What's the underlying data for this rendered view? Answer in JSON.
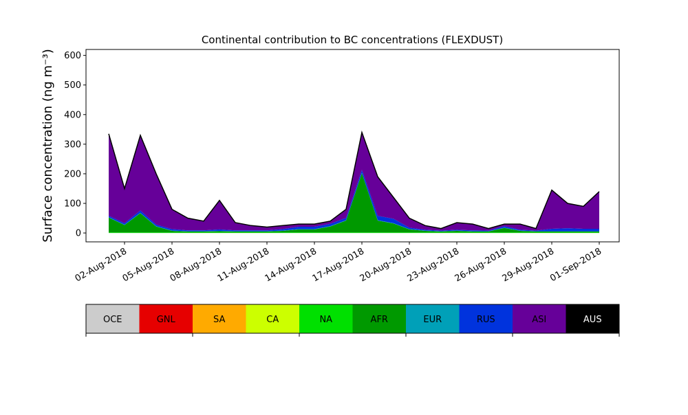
{
  "chart_data": {
    "type": "stacked_area",
    "title": "Continental contribution to BC concentrations (FLEXDUST)",
    "y_label": "Surface concentration (ng m⁻³)",
    "x": [
      "01-Aug-2018",
      "02-Aug-2018",
      "03-Aug-2018",
      "04-Aug-2018",
      "05-Aug-2018",
      "06-Aug-2018",
      "07-Aug-2018",
      "08-Aug-2018",
      "09-Aug-2018",
      "10-Aug-2018",
      "11-Aug-2018",
      "12-Aug-2018",
      "13-Aug-2018",
      "14-Aug-2018",
      "15-Aug-2018",
      "16-Aug-2018",
      "17-Aug-2018",
      "18-Aug-2018",
      "19-Aug-2018",
      "20-Aug-2018",
      "21-Aug-2018",
      "22-Aug-2018",
      "23-Aug-2018",
      "24-Aug-2018",
      "25-Aug-2018",
      "26-Aug-2018",
      "27-Aug-2018",
      "28-Aug-2018",
      "29-Aug-2018",
      "30-Aug-2018",
      "31-Aug-2018",
      "01-Sep-2018"
    ],
    "xticks": [
      "02-Aug-2018",
      "05-Aug-2018",
      "08-Aug-2018",
      "11-Aug-2018",
      "14-Aug-2018",
      "17-Aug-2018",
      "20-Aug-2018",
      "23-Aug-2018",
      "26-Aug-2018",
      "29-Aug-2018",
      "01-Sep-2018"
    ],
    "ylim": [
      -30,
      620
    ],
    "yticks": [
      0,
      100,
      200,
      300,
      400,
      500,
      600
    ],
    "series": [
      {
        "name": "OCE",
        "color": "#cccccc",
        "values": [
          0,
          0,
          0,
          0,
          0,
          0,
          0,
          0,
          0,
          0,
          0,
          0,
          0,
          0,
          0,
          0,
          0,
          0,
          0,
          0,
          0,
          0,
          0,
          0,
          0,
          0,
          0,
          0,
          0,
          0,
          0,
          0
        ]
      },
      {
        "name": "GNL",
        "color": "#e60000",
        "values": [
          0,
          0,
          0,
          0,
          0,
          0,
          0,
          0,
          0,
          0,
          0,
          0,
          0,
          0,
          0,
          0,
          0,
          0,
          0,
          0,
          0,
          0,
          0,
          0,
          0,
          0,
          0,
          0,
          0,
          0,
          0,
          0
        ]
      },
      {
        "name": "SA",
        "color": "#ffaa00",
        "values": [
          0,
          0,
          0,
          0,
          0,
          0,
          0,
          0,
          0,
          0,
          0,
          0,
          0,
          0,
          0,
          0,
          0,
          0,
          0,
          0,
          0,
          0,
          0,
          0,
          0,
          0,
          0,
          0,
          0,
          0,
          0,
          0
        ]
      },
      {
        "name": "CA",
        "color": "#ccff00",
        "values": [
          0,
          0,
          0,
          0,
          0,
          0,
          0,
          0,
          0,
          0,
          0,
          0,
          0,
          0,
          0,
          0,
          0,
          0,
          0,
          0,
          0,
          0,
          0,
          0,
          0,
          0,
          0,
          0,
          0,
          0,
          0,
          0
        ]
      },
      {
        "name": "NA",
        "color": "#00e000",
        "values": [
          2,
          2,
          2,
          2,
          2,
          2,
          2,
          2,
          2,
          2,
          2,
          2,
          2,
          2,
          2,
          2,
          2,
          2,
          2,
          2,
          2,
          2,
          2,
          2,
          2,
          2,
          2,
          2,
          2,
          2,
          2,
          2
        ]
      },
      {
        "name": "AFR",
        "color": "#009900",
        "values": [
          50,
          25,
          65,
          20,
          5,
          3,
          3,
          4,
          3,
          3,
          3,
          5,
          10,
          10,
          20,
          40,
          200,
          40,
          30,
          10,
          5,
          3,
          5,
          3,
          3,
          15,
          5,
          3,
          3,
          3,
          3,
          3
        ]
      },
      {
        "name": "EUR",
        "color": "#00a0b8",
        "values": [
          1,
          1,
          1,
          1,
          1,
          1,
          1,
          1,
          1,
          1,
          1,
          1,
          1,
          1,
          1,
          1,
          1,
          1,
          1,
          1,
          1,
          1,
          1,
          1,
          1,
          1,
          1,
          1,
          1,
          1,
          1,
          1
        ]
      },
      {
        "name": "RUS",
        "color": "#0033dd",
        "values": [
          5,
          5,
          8,
          5,
          5,
          3,
          3,
          5,
          3,
          3,
          3,
          5,
          8,
          8,
          8,
          8,
          10,
          15,
          15,
          5,
          3,
          2,
          3,
          3,
          2,
          5,
          3,
          2,
          8,
          10,
          8,
          8
        ]
      },
      {
        "name": "ASI",
        "color": "#660099",
        "values": [
          277,
          117,
          254,
          172,
          67,
          41,
          31,
          98,
          26,
          16,
          11,
          12,
          9,
          9,
          9,
          29,
          127,
          132,
          72,
          32,
          14,
          7,
          24,
          21,
          7,
          7,
          19,
          7,
          131,
          84,
          76,
          126
        ]
      },
      {
        "name": "AUS",
        "color": "#000000",
        "values": [
          0,
          0,
          0,
          0,
          0,
          0,
          0,
          0,
          0,
          0,
          0,
          0,
          0,
          0,
          0,
          0,
          0,
          0,
          0,
          0,
          0,
          0,
          0,
          0,
          0,
          0,
          0,
          0,
          0,
          0,
          0,
          0
        ]
      }
    ]
  }
}
